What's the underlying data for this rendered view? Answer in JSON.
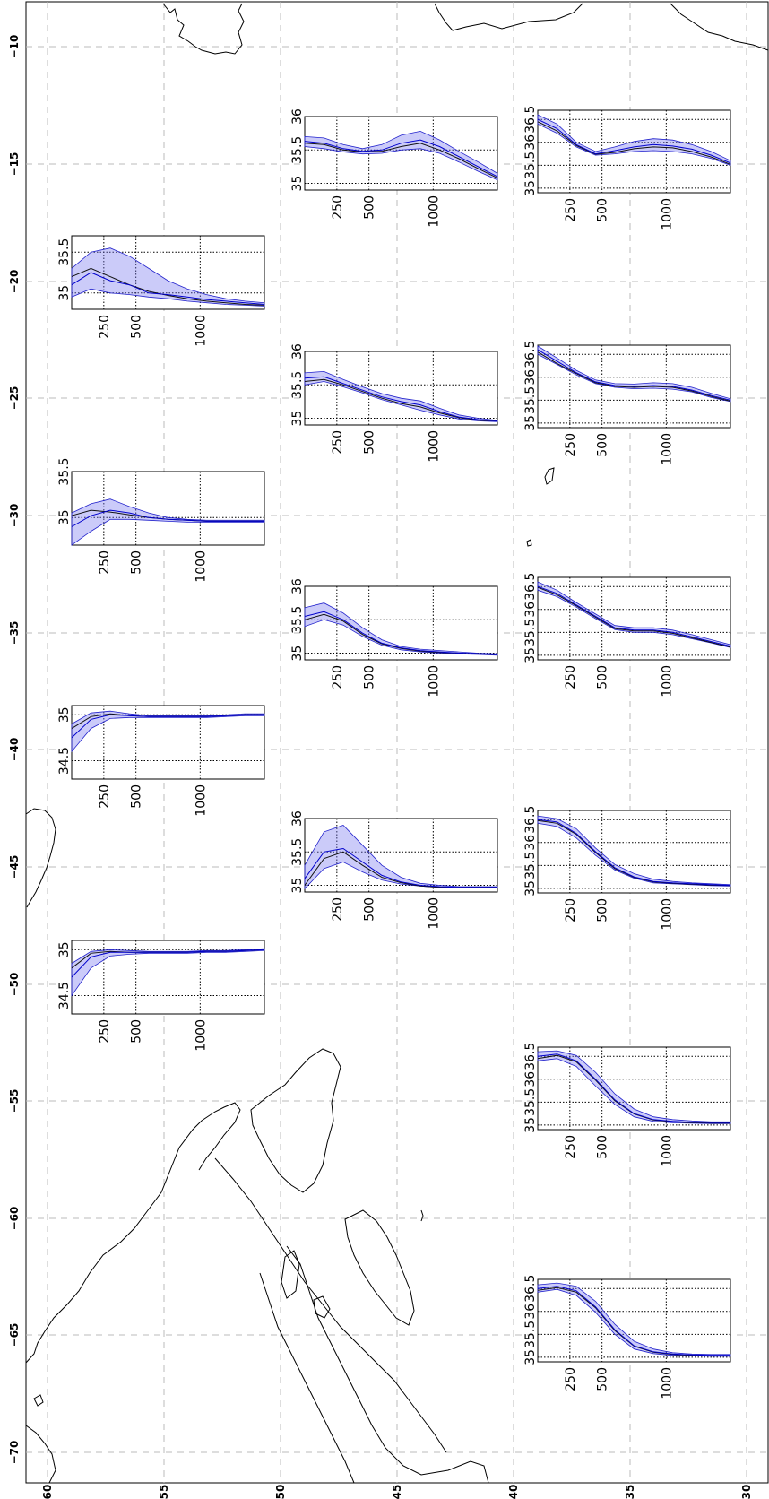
{
  "map": {
    "lon_labels": [
      "−10",
      "−15",
      "−20",
      "−25",
      "−30",
      "−35",
      "−40",
      "−45",
      "−50",
      "−55",
      "−60",
      "−65",
      "−70"
    ],
    "lat_labels": [
      "60",
      "55",
      "50",
      "45",
      "40",
      "35",
      "30"
    ],
    "colors": {
      "band": "#7777ee",
      "band_edge": "#2222cc",
      "profile_line": "#0000cc",
      "reference_line": "#111111",
      "grid": "#bbbbbb"
    }
  },
  "chart_data": [
    {
      "id": "p1",
      "type": "area",
      "x_ticks": [
        "250",
        "500",
        "1000"
      ],
      "y_ticks": [
        "35",
        "35.5"
      ],
      "ylim": [
        34.8,
        35.7
      ],
      "x": [
        0,
        150,
        300,
        450,
        600,
        750,
        900,
        1050,
        1200,
        1350,
        1500
      ],
      "mean": [
        35.1,
        35.25,
        35.15,
        35.1,
        35.0,
        34.98,
        34.95,
        34.92,
        34.9,
        34.88,
        34.86
      ],
      "lower": [
        34.95,
        35.05,
        35.0,
        34.98,
        34.95,
        34.93,
        34.9,
        34.88,
        34.86,
        34.85,
        34.84
      ],
      "upper": [
        35.3,
        35.5,
        35.55,
        35.45,
        35.3,
        35.15,
        35.05,
        34.98,
        34.93,
        34.9,
        34.88
      ],
      "reference": [
        35.2,
        35.3,
        35.2,
        35.1,
        35.02,
        34.97,
        34.93,
        34.9,
        34.88,
        34.86,
        34.85
      ]
    },
    {
      "id": "p2",
      "type": "area",
      "x_ticks": [
        "250",
        "500",
        "1000"
      ],
      "y_ticks": [
        "35",
        "35.5"
      ],
      "ylim": [
        34.7,
        35.5
      ],
      "x": [
        0,
        150,
        300,
        450,
        600,
        750,
        900,
        1050,
        1200,
        1350,
        1500
      ],
      "mean": [
        34.9,
        35.02,
        35.08,
        35.05,
        35.0,
        34.98,
        34.97,
        34.96,
        34.96,
        34.96,
        34.96
      ],
      "lower": [
        34.7,
        34.85,
        34.98,
        34.98,
        34.97,
        34.96,
        34.95,
        34.95,
        34.95,
        34.95,
        34.95
      ],
      "upper": [
        35.05,
        35.15,
        35.2,
        35.12,
        35.05,
        35.0,
        34.98,
        34.97,
        34.97,
        34.97,
        34.97
      ],
      "reference": [
        35.02,
        35.08,
        35.06,
        35.03,
        35.0,
        34.98,
        34.97,
        34.96,
        34.96,
        34.96,
        34.96
      ]
    },
    {
      "id": "p3",
      "type": "area",
      "x_ticks": [
        "250",
        "500",
        "1000"
      ],
      "y_ticks": [
        "34.5",
        "35"
      ],
      "ylim": [
        34.3,
        35.1
      ],
      "x": [
        0,
        150,
        300,
        450,
        600,
        750,
        900,
        1050,
        1200,
        1350,
        1500
      ],
      "mean": [
        34.75,
        34.95,
        35.0,
        34.99,
        34.98,
        34.98,
        34.98,
        34.98,
        34.99,
        35.0,
        35.0
      ],
      "lower": [
        34.6,
        34.85,
        34.96,
        34.97,
        34.97,
        34.97,
        34.97,
        34.97,
        34.98,
        34.99,
        34.99
      ],
      "upper": [
        34.9,
        35.02,
        35.04,
        35.01,
        34.99,
        34.99,
        34.99,
        34.99,
        35.0,
        35.01,
        35.01
      ],
      "reference": [
        34.85,
        34.98,
        35.01,
        34.99,
        34.98,
        34.98,
        34.98,
        34.98,
        34.99,
        35.0,
        35.0
      ]
    },
    {
      "id": "p4",
      "type": "area",
      "x_ticks": [
        "250",
        "500",
        "1000"
      ],
      "y_ticks": [
        "34.5",
        "35"
      ],
      "ylim": [
        34.3,
        35.1
      ],
      "x": [
        0,
        150,
        300,
        450,
        600,
        750,
        900,
        1050,
        1200,
        1350,
        1500
      ],
      "mean": [
        34.7,
        34.92,
        34.97,
        34.97,
        34.97,
        34.97,
        34.97,
        34.98,
        34.98,
        34.99,
        35.0
      ],
      "lower": [
        34.5,
        34.8,
        34.93,
        34.95,
        34.96,
        34.96,
        34.96,
        34.97,
        34.97,
        34.98,
        34.99
      ],
      "upper": [
        34.85,
        34.98,
        35.0,
        34.99,
        34.98,
        34.98,
        34.98,
        34.99,
        34.99,
        35.0,
        35.01
      ],
      "reference": [
        34.8,
        34.96,
        34.98,
        34.97,
        34.97,
        34.97,
        34.97,
        34.98,
        34.98,
        34.99,
        35.0
      ]
    },
    {
      "id": "p5",
      "type": "area",
      "x_ticks": [
        "250",
        "500",
        "1000"
      ],
      "y_ticks": [
        "35",
        "35.5",
        "36"
      ],
      "ylim": [
        34.9,
        36.0
      ],
      "x": [
        0,
        150,
        300,
        450,
        600,
        750,
        900,
        1050,
        1200,
        1350,
        1500
      ],
      "mean": [
        35.63,
        35.6,
        35.52,
        35.48,
        35.5,
        35.6,
        35.65,
        35.55,
        35.4,
        35.25,
        35.1
      ],
      "lower": [
        35.55,
        35.52,
        35.47,
        35.44,
        35.45,
        35.5,
        35.52,
        35.45,
        35.32,
        35.18,
        35.05
      ],
      "upper": [
        35.7,
        35.68,
        35.58,
        35.52,
        35.58,
        35.72,
        35.78,
        35.65,
        35.48,
        35.32,
        35.15
      ],
      "reference": [
        35.6,
        35.58,
        35.5,
        35.47,
        35.48,
        35.55,
        35.6,
        35.5,
        35.37,
        35.22,
        35.08
      ]
    },
    {
      "id": "p6",
      "type": "area",
      "x_ticks": [
        "250",
        "500",
        "1000"
      ],
      "y_ticks": [
        "35",
        "35.5",
        "36"
      ],
      "ylim": [
        34.9,
        36.0
      ],
      "x": [
        0,
        150,
        300,
        450,
        600,
        750,
        900,
        1050,
        1200,
        1350,
        1500
      ],
      "mean": [
        35.6,
        35.62,
        35.52,
        35.42,
        35.32,
        35.25,
        35.2,
        35.1,
        35.02,
        34.98,
        34.96
      ],
      "lower": [
        35.5,
        35.55,
        35.47,
        35.38,
        35.28,
        35.2,
        35.12,
        35.05,
        34.99,
        34.96,
        34.95
      ],
      "upper": [
        35.68,
        35.7,
        35.58,
        35.47,
        35.37,
        35.3,
        35.26,
        35.15,
        35.05,
        35.0,
        34.97
      ],
      "reference": [
        35.55,
        35.58,
        35.5,
        35.4,
        35.3,
        35.22,
        35.17,
        35.08,
        35.01,
        34.97,
        34.96
      ]
    },
    {
      "id": "p7",
      "type": "area",
      "x_ticks": [
        "250",
        "500",
        "1000"
      ],
      "y_ticks": [
        "35",
        "35.5",
        "36"
      ],
      "ylim": [
        34.9,
        36.0
      ],
      "x": [
        0,
        150,
        300,
        450,
        600,
        750,
        900,
        1050,
        1200,
        1350,
        1500
      ],
      "mean": [
        35.55,
        35.62,
        35.5,
        35.3,
        35.15,
        35.08,
        35.04,
        35.02,
        35.0,
        34.99,
        34.98
      ],
      "lower": [
        35.4,
        35.5,
        35.42,
        35.25,
        35.12,
        35.05,
        35.02,
        35.0,
        34.99,
        34.98,
        34.97
      ],
      "upper": [
        35.68,
        35.75,
        35.6,
        35.38,
        35.2,
        35.1,
        35.06,
        35.04,
        35.02,
        35.0,
        34.99
      ],
      "reference": [
        35.5,
        35.58,
        35.48,
        35.28,
        35.14,
        35.07,
        35.03,
        35.01,
        35.0,
        34.99,
        34.98
      ]
    },
    {
      "id": "p8",
      "type": "area",
      "x_ticks": [
        "250",
        "500",
        "1000"
      ],
      "y_ticks": [
        "35",
        "35.5",
        "36"
      ],
      "ylim": [
        34.9,
        36.0
      ],
      "x": [
        0,
        150,
        300,
        450,
        600,
        750,
        900,
        1050,
        1200,
        1350,
        1500
      ],
      "mean": [
        35.1,
        35.5,
        35.55,
        35.35,
        35.15,
        35.05,
        35.0,
        34.98,
        34.97,
        34.97,
        34.97
      ],
      "lower": [
        34.95,
        35.25,
        35.35,
        35.2,
        35.08,
        35.02,
        34.99,
        34.97,
        34.96,
        34.96,
        34.96
      ],
      "upper": [
        35.3,
        35.8,
        35.9,
        35.6,
        35.3,
        35.12,
        35.03,
        35.0,
        34.98,
        34.98,
        34.98
      ],
      "reference": [
        35.0,
        35.4,
        35.5,
        35.3,
        35.12,
        35.04,
        34.99,
        34.97,
        34.97,
        34.97,
        34.97
      ]
    },
    {
      "id": "p9",
      "type": "area",
      "x_ticks": [
        "250",
        "500",
        "1000"
      ],
      "y_ticks": [
        "35",
        "35.5",
        "36",
        "36.5"
      ],
      "ylim": [
        34.9,
        36.7
      ],
      "x": [
        0,
        150,
        300,
        450,
        600,
        750,
        900,
        1050,
        1200,
        1350,
        1500
      ],
      "mean": [
        36.5,
        36.3,
        35.95,
        35.75,
        35.82,
        35.9,
        35.95,
        35.92,
        35.85,
        35.72,
        35.55
      ],
      "lower": [
        36.4,
        36.2,
        35.9,
        35.72,
        35.75,
        35.8,
        35.82,
        35.8,
        35.75,
        35.65,
        35.5
      ],
      "upper": [
        36.6,
        36.4,
        36.0,
        35.8,
        35.9,
        36.02,
        36.08,
        36.05,
        35.95,
        35.8,
        35.6
      ],
      "reference": [
        36.45,
        36.25,
        35.93,
        35.74,
        35.78,
        35.86,
        35.9,
        35.88,
        35.8,
        35.68,
        35.52
      ]
    },
    {
      "id": "p10",
      "type": "area",
      "x_ticks": [
        "250",
        "500",
        "1000"
      ],
      "y_ticks": [
        "35",
        "35.5",
        "36",
        "36.5"
      ],
      "ylim": [
        34.9,
        36.7
      ],
      "x": [
        0,
        150,
        300,
        450,
        600,
        750,
        900,
        1050,
        1200,
        1350,
        1500
      ],
      "mean": [
        36.6,
        36.35,
        36.1,
        35.9,
        35.82,
        35.8,
        35.82,
        35.8,
        35.72,
        35.6,
        35.5
      ],
      "lower": [
        36.5,
        36.28,
        36.05,
        35.86,
        35.78,
        35.75,
        35.76,
        35.74,
        35.68,
        35.56,
        35.47
      ],
      "upper": [
        36.68,
        36.42,
        36.15,
        35.94,
        35.86,
        35.85,
        35.88,
        35.86,
        35.78,
        35.65,
        35.53
      ],
      "reference": [
        36.55,
        36.3,
        36.08,
        35.88,
        35.8,
        35.78,
        35.8,
        35.78,
        35.7,
        35.58,
        35.48
      ]
    },
    {
      "id": "p11",
      "type": "area",
      "x_ticks": [
        "250",
        "500",
        "1000"
      ],
      "y_ticks": [
        "35",
        "35.5",
        "36",
        "36.5"
      ],
      "ylim": [
        34.9,
        36.7
      ],
      "x": [
        0,
        150,
        300,
        450,
        600,
        750,
        900,
        1050,
        1200,
        1350,
        1500
      ],
      "mean": [
        36.5,
        36.35,
        36.1,
        35.85,
        35.6,
        35.55,
        35.55,
        35.5,
        35.4,
        35.3,
        35.2
      ],
      "lower": [
        36.42,
        36.28,
        36.05,
        35.8,
        35.56,
        35.5,
        35.5,
        35.45,
        35.36,
        35.27,
        35.17
      ],
      "upper": [
        36.6,
        36.42,
        36.15,
        35.9,
        35.65,
        35.6,
        35.6,
        35.55,
        35.45,
        35.34,
        35.23
      ],
      "reference": [
        36.48,
        36.32,
        36.08,
        35.83,
        35.58,
        35.53,
        35.53,
        35.48,
        35.38,
        35.28,
        35.18
      ]
    },
    {
      "id": "p12",
      "type": "area",
      "x_ticks": [
        "250",
        "500",
        "1000"
      ],
      "y_ticks": [
        "35",
        "35.5",
        "36",
        "36.5"
      ],
      "ylim": [
        34.9,
        36.7
      ],
      "x": [
        0,
        150,
        300,
        450,
        600,
        750,
        900,
        1050,
        1200,
        1350,
        1500
      ],
      "mean": [
        36.5,
        36.45,
        36.2,
        35.8,
        35.45,
        35.25,
        35.15,
        35.12,
        35.1,
        35.08,
        35.06
      ],
      "lower": [
        36.42,
        36.35,
        36.1,
        35.72,
        35.4,
        35.22,
        35.12,
        35.1,
        35.08,
        35.06,
        35.05
      ],
      "upper": [
        36.58,
        36.52,
        36.3,
        35.88,
        35.52,
        35.32,
        35.2,
        35.15,
        35.12,
        35.1,
        35.08
      ],
      "reference": [
        36.48,
        36.42,
        36.18,
        35.78,
        35.43,
        35.24,
        35.14,
        35.11,
        35.09,
        35.07,
        35.06
      ]
    },
    {
      "id": "p13",
      "type": "area",
      "x_ticks": [
        "250",
        "500",
        "1000"
      ],
      "y_ticks": [
        "35",
        "35.5",
        "36",
        "36.5"
      ],
      "ylim": [
        34.9,
        36.7
      ],
      "x": [
        0,
        150,
        300,
        450,
        600,
        750,
        900,
        1050,
        1200,
        1350,
        1500
      ],
      "mean": [
        36.5,
        36.55,
        36.4,
        36.0,
        35.55,
        35.25,
        35.12,
        35.08,
        35.06,
        35.05,
        35.05
      ],
      "lower": [
        36.4,
        36.45,
        36.28,
        35.85,
        35.45,
        35.18,
        35.08,
        35.05,
        35.04,
        35.03,
        35.03
      ],
      "upper": [
        36.6,
        36.62,
        36.52,
        36.15,
        35.68,
        35.35,
        35.18,
        35.12,
        35.09,
        35.07,
        35.07
      ],
      "reference": [
        36.45,
        36.52,
        36.38,
        35.98,
        35.53,
        35.24,
        35.11,
        35.07,
        35.05,
        35.04,
        35.04
      ]
    },
    {
      "id": "p14",
      "type": "area",
      "x_ticks": [
        "250",
        "500",
        "1000"
      ],
      "y_ticks": [
        "35",
        "35.5",
        "36",
        "36.5"
      ],
      "ylim": [
        34.9,
        36.7
      ],
      "x": [
        0,
        150,
        300,
        450,
        600,
        750,
        900,
        1050,
        1200,
        1350,
        1500
      ],
      "mean": [
        36.5,
        36.55,
        36.45,
        36.1,
        35.6,
        35.25,
        35.12,
        35.07,
        35.05,
        35.04,
        35.04
      ],
      "lower": [
        36.42,
        36.48,
        36.35,
        35.98,
        35.5,
        35.18,
        35.08,
        35.04,
        35.03,
        35.02,
        35.02
      ],
      "upper": [
        36.58,
        36.62,
        36.55,
        36.22,
        35.72,
        35.35,
        35.18,
        35.1,
        35.07,
        35.06,
        35.06
      ],
      "reference": [
        36.46,
        36.52,
        36.42,
        36.08,
        35.58,
        35.24,
        35.11,
        35.06,
        35.04,
        35.03,
        35.03
      ]
    }
  ]
}
